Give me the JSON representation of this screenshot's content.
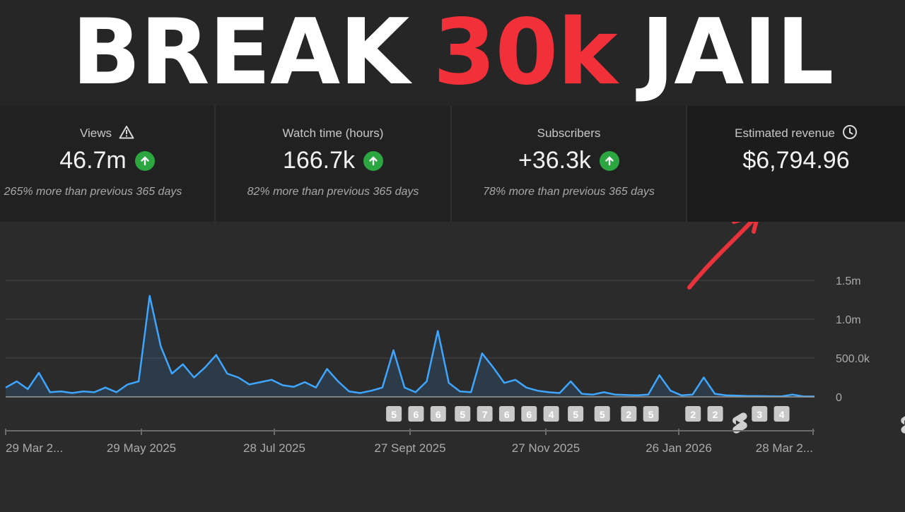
{
  "headline": {
    "part1": "BREAK",
    "part2": "30k",
    "part3": "JAIL"
  },
  "metrics": [
    {
      "label": "Views",
      "value": "46.7m",
      "sub": "265% more than previous 365 days",
      "icon": "warning-icon",
      "trend": "up"
    },
    {
      "label": "Watch time (hours)",
      "value": "166.7k",
      "sub": "82% more than previous 365 days",
      "trend": "up"
    },
    {
      "label": "Subscribers",
      "value": "+36.3k",
      "sub": "78% more than previous 365 days",
      "trend": "up"
    },
    {
      "label": "Estimated revenue",
      "value": "$6,794.96",
      "icon": "clock-icon"
    }
  ],
  "colors": {
    "line": "#3ea6ff",
    "up_badge": "#2ba640",
    "headline_accent": "#f2303a",
    "arrow": "#e8323c"
  },
  "chart_data": {
    "type": "area",
    "ylabel_ticks": [
      "1.5m",
      "1.0m",
      "500.0k",
      "0"
    ],
    "y_tick_values": [
      1500000,
      1000000,
      500000,
      0
    ],
    "ylim": [
      0,
      1500000
    ],
    "x_tick_labels": [
      "29 Mar 2...",
      "29 May 2025",
      "28 Jul 2025",
      "27 Sept 2025",
      "27 Nov 2025",
      "26 Jan 2026",
      "28 Mar 2..."
    ],
    "x": [
      0,
      5,
      10,
      15,
      20,
      25,
      30,
      35,
      40,
      45,
      50,
      55,
      60,
      65,
      70,
      75,
      80,
      85,
      90,
      95,
      100,
      105,
      110,
      115,
      120,
      125,
      130,
      135,
      140,
      145,
      150,
      155,
      160,
      165,
      170,
      175,
      180,
      185,
      190,
      195,
      200,
      205,
      210,
      215,
      220,
      225,
      230,
      235,
      240,
      245,
      250,
      255,
      260,
      265,
      270,
      275,
      280,
      285,
      290,
      295,
      300,
      305,
      310,
      315,
      320,
      325,
      330,
      335,
      340,
      345,
      350,
      355,
      360,
      365
    ],
    "x_unit": "days since 29 Mar 2025",
    "y": [
      120000,
      200000,
      100000,
      310000,
      60000,
      70000,
      50000,
      70000,
      60000,
      120000,
      60000,
      160000,
      200000,
      1300000,
      650000,
      300000,
      420000,
      250000,
      380000,
      540000,
      300000,
      250000,
      160000,
      190000,
      220000,
      150000,
      130000,
      190000,
      120000,
      360000,
      200000,
      70000,
      50000,
      80000,
      120000,
      600000,
      120000,
      60000,
      200000,
      850000,
      180000,
      70000,
      60000,
      560000,
      380000,
      180000,
      220000,
      120000,
      80000,
      60000,
      50000,
      200000,
      40000,
      30000,
      60000,
      30000,
      25000,
      20000,
      30000,
      280000,
      80000,
      20000,
      30000,
      250000,
      40000,
      20000,
      15000,
      10000,
      10000,
      8000,
      6000,
      30000,
      5000,
      5000
    ],
    "annotations": [
      {
        "x_day": 105,
        "label": "5"
      },
      {
        "x_day": 115,
        "label": "6"
      },
      {
        "x_day": 125,
        "label": "6"
      },
      {
        "x_day": 136,
        "label": "5"
      },
      {
        "x_day": 146,
        "label": "7"
      },
      {
        "x_day": 156,
        "label": "6"
      },
      {
        "x_day": 166,
        "label": "6"
      },
      {
        "x_day": 176,
        "label": "4"
      },
      {
        "x_day": 187,
        "label": "5"
      },
      {
        "x_day": 199,
        "label": "5"
      },
      {
        "x_day": 211,
        "label": "2"
      },
      {
        "x_day": 221,
        "label": "5"
      },
      {
        "x_day": 240,
        "label": "2"
      },
      {
        "x_day": 250,
        "label": "2"
      },
      {
        "x_day": 260,
        "icon": "shorts-icon"
      },
      {
        "x_day": 270,
        "label": "3"
      },
      {
        "x_day": 280,
        "label": "4"
      },
      {
        "x_day": 336,
        "icon": "shorts-icon"
      }
    ],
    "grid": true,
    "legend": "none"
  }
}
